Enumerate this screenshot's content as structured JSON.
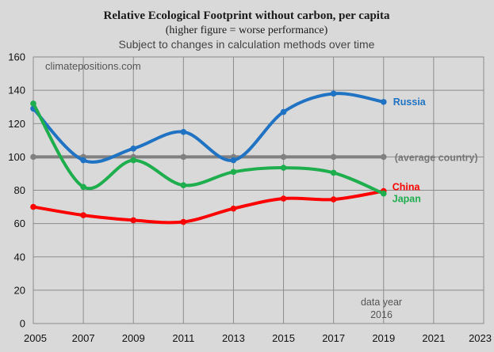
{
  "chart_data": {
    "type": "line",
    "title": "Relative Ecological Footprint without carbon, per capita",
    "subtitle": "(higher figure = worse performance)",
    "subtitle2": "Subject to changes in calculation methods over time",
    "watermark": "climatepositions.com",
    "note_line1": "data year",
    "note_line2": "2016",
    "xlim": [
      2005,
      2023
    ],
    "ylim": [
      0,
      160
    ],
    "x_ticks": [
      "2005",
      "2007",
      "2009",
      "2011",
      "2013",
      "2015",
      "2017",
      "2019",
      "2021",
      "2023"
    ],
    "y_ticks": [
      "0",
      "20",
      "40",
      "60",
      "80",
      "100",
      "120",
      "140",
      "160"
    ],
    "grid": true,
    "series": [
      {
        "name": "(average country)",
        "color": "#808080",
        "x": [
          2005,
          2007,
          2009,
          2011,
          2013,
          2015,
          2017,
          2019
        ],
        "y": [
          100,
          100,
          100,
          100,
          100,
          100,
          100,
          100
        ]
      },
      {
        "name": "Russia",
        "color": "#1f73c2",
        "x": [
          2005,
          2007,
          2009,
          2011,
          2013,
          2015,
          2017,
          2019
        ],
        "y": [
          129,
          98,
          105,
          115,
          98,
          127,
          138,
          133
        ]
      },
      {
        "name": "China",
        "color": "#ff0000",
        "x": [
          2005,
          2007,
          2009,
          2011,
          2013,
          2015,
          2017,
          2019
        ],
        "y": [
          70,
          65,
          62,
          61,
          69,
          75,
          74.5,
          79.5
        ]
      },
      {
        "name": "Japan",
        "color": "#1fae4e",
        "x": [
          2005,
          2007,
          2009,
          2011,
          2013,
          2015,
          2017,
          2019
        ],
        "y": [
          132,
          82,
          98,
          83,
          91,
          93.5,
          90.5,
          78
        ]
      }
    ]
  }
}
